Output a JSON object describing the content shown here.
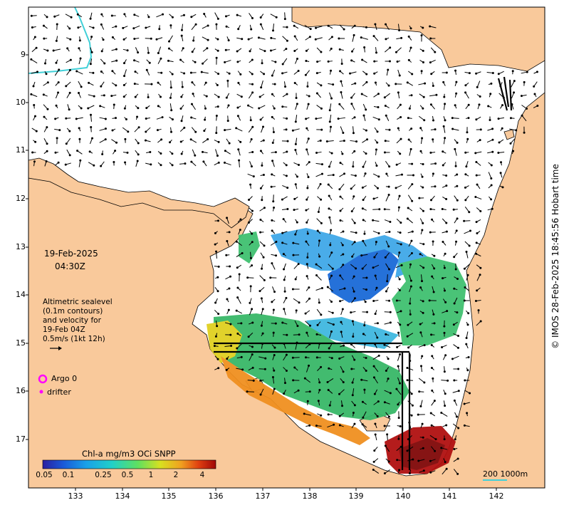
{
  "date_line1": "19-Feb-2025",
  "date_line2": "04:30Z",
  "legend_text": [
    "Altimetric sealevel",
    "(0.1m contours)",
    "and velocity for",
    "19-Feb 04Z",
    "0.5m/s (1kt 12h)"
  ],
  "argo_label": "Argo 0",
  "drifter_label": "drifter",
  "colorbar_title": "Chl-a mg/m3 OCi SNPP",
  "colorbar_ticks": [
    "0.05",
    "0.1",
    "0.25",
    "0.5",
    "1",
    "2",
    "4"
  ],
  "scale_label": "200  1000m",
  "copyright": "© IMOS 28-Feb-2025 18:45:56 Hobart time",
  "lat_labels": [
    "9",
    "10",
    "11",
    "12",
    "13",
    "14",
    "15",
    "16",
    "17"
  ],
  "lon_labels": [
    "133",
    "134",
    "135",
    "136",
    "137",
    "138",
    "139",
    "140",
    "141",
    "142"
  ],
  "colors": {
    "land": "#f9c99b",
    "ocean": "#ffffff",
    "bathy_contour": "#40d0d8",
    "argo": "#ff00ff",
    "drifter": "#ff00ff",
    "colorbar": [
      "#2a1ea0",
      "#1a5ad8",
      "#1aa0e8",
      "#20d0c8",
      "#60e060",
      "#d8e020",
      "#f0a020",
      "#e04010",
      "#a00808"
    ]
  }
}
